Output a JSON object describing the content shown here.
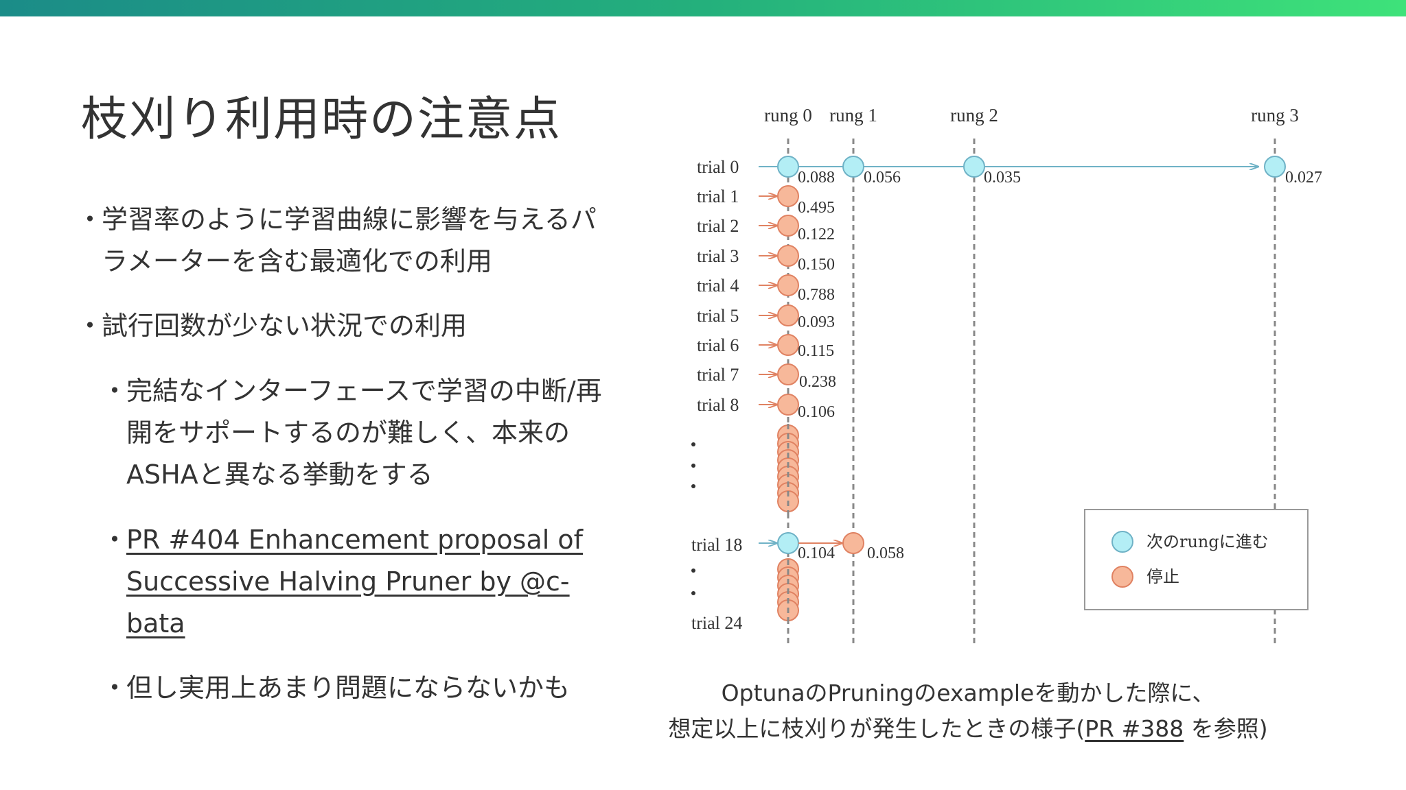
{
  "title": "枝刈り利用時の注意点",
  "bullets": [
    {
      "marker": "・",
      "text": "学習率のように学習曲線に影響を与えるパラメーターを含む最適化での利用"
    },
    {
      "marker": "・",
      "text": "試行回数が少ない状況での利用"
    },
    {
      "marker": "・",
      "text": "完結なインターフェースで学習の中断/再開をサポートするのが難しく、本来のASHAと異なる挙動をする"
    },
    {
      "marker": "・",
      "text": "PR #404 Enhancement proposal of Successive Halving Pruner by @c-bata"
    },
    {
      "marker": "・",
      "text": "但し実用上あまり問題にならないかも"
    }
  ],
  "diagram": {
    "rungs": [
      "rung 0",
      "rung 1",
      "rung 2",
      "rung 3"
    ],
    "trials": [
      {
        "label": "trial 0",
        "values": [
          "0.088",
          "0.056",
          "0.035",
          "0.027"
        ]
      },
      {
        "label": "trial 1",
        "values": [
          "0.495"
        ]
      },
      {
        "label": "trial 2",
        "values": [
          "0.122"
        ]
      },
      {
        "label": "trial 3",
        "values": [
          "0.150"
        ]
      },
      {
        "label": "trial 4",
        "values": [
          "0.788"
        ]
      },
      {
        "label": "trial 5",
        "values": [
          "0.093"
        ]
      },
      {
        "label": "trial 6",
        "values": [
          "0.115"
        ]
      },
      {
        "label": "trial 7",
        "values": [
          "0.238"
        ]
      },
      {
        "label": "trial 8",
        "values": [
          "0.106"
        ]
      },
      {
        "label": "trial 18",
        "values": [
          "0.104",
          "0.058"
        ]
      },
      {
        "label": "trial 24",
        "values": []
      }
    ],
    "legend": {
      "promote": "次のrungに進む",
      "stop": "停止"
    },
    "colors": {
      "promote_fill": "#b3eef5",
      "stop_fill": "#f7b89a",
      "arrow_promote": "#6fb2c6",
      "arrow_stop": "#e08262",
      "rung_line": "#888888"
    }
  },
  "caption": {
    "line1": "OptunaのPruningのexampleを動かした際に、",
    "line2_prefix": "想定以上に枝刈りが発生したときの様子(",
    "line2_link": "PR #388",
    "line2_suffix": " を参照)"
  }
}
